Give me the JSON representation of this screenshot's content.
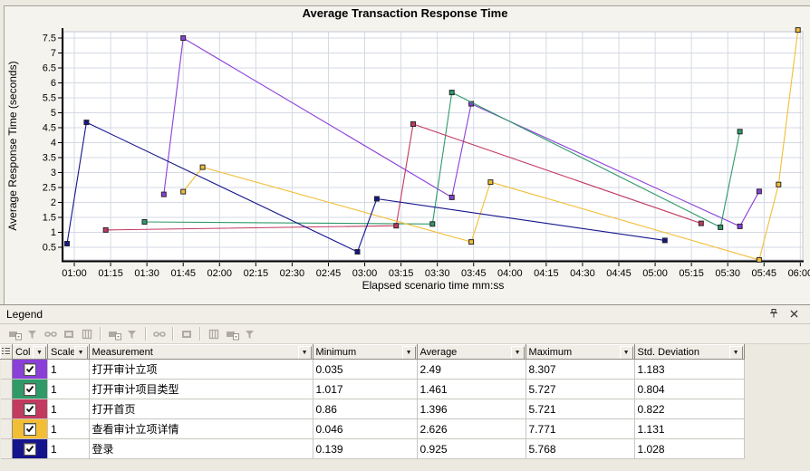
{
  "chart_data": {
    "type": "line",
    "title": "Average Transaction Response Time",
    "xlabel": "Elapsed scenario time mm:ss",
    "ylabel": "Average Response Time (seconds)",
    "grid": true,
    "legend_position": "bottom-table",
    "x_tick_labels": [
      "01:00",
      "01:15",
      "01:30",
      "01:45",
      "02:00",
      "02:15",
      "02:30",
      "02:45",
      "03:00",
      "03:15",
      "03:30",
      "03:45",
      "04:00",
      "04:15",
      "04:30",
      "04:45",
      "05:00",
      "05:15",
      "05:30",
      "05:45",
      "06:00"
    ],
    "x_ticks_seconds": [
      60,
      75,
      90,
      105,
      120,
      135,
      150,
      165,
      180,
      195,
      210,
      225,
      240,
      255,
      270,
      285,
      300,
      315,
      330,
      345,
      360
    ],
    "x_range_seconds": [
      55.5,
      361
    ],
    "y_ticks": [
      0.5,
      1,
      1.5,
      2,
      2.5,
      3,
      3.5,
      4,
      4.5,
      5,
      5.5,
      6,
      6.5,
      7,
      7.5
    ],
    "y_range": [
      0.076,
      7.712
    ],
    "series": [
      {
        "name": "打开审计立项",
        "color": "#8B3FD9",
        "points": [
          [
            97,
            2.27
          ],
          [
            105,
            7.5
          ],
          [
            216,
            2.17
          ],
          [
            224,
            5.3
          ],
          [
            335,
            1.2
          ],
          [
            343,
            2.37
          ]
        ]
      },
      {
        "name": "打开审计项目类型",
        "color": "#2F9A68",
        "points": [
          [
            89,
            1.35
          ],
          [
            208,
            1.28
          ],
          [
            216,
            5.68
          ],
          [
            327,
            1.17
          ],
          [
            335,
            4.37
          ]
        ]
      },
      {
        "name": "打开首页",
        "color": "#C23A60",
        "points": [
          [
            73,
            1.08
          ],
          [
            193,
            1.22
          ],
          [
            200,
            4.62
          ],
          [
            319,
            1.3
          ]
        ]
      },
      {
        "name": "查看审计立项详情",
        "color": "#F2BE35",
        "points": [
          [
            105,
            2.36
          ],
          [
            113,
            3.18
          ],
          [
            224,
            0.68
          ],
          [
            232,
            2.68
          ],
          [
            343,
            0.08
          ],
          [
            351,
            2.6
          ],
          [
            359,
            7.77
          ]
        ]
      },
      {
        "name": "登录",
        "color": "#14148C",
        "points": [
          [
            57,
            0.62
          ],
          [
            65,
            4.68
          ],
          [
            177,
            0.35
          ],
          [
            185,
            2.12
          ],
          [
            304,
            0.73
          ]
        ]
      }
    ]
  },
  "legend": {
    "title": "Legend",
    "columns": [
      "Col",
      "Scale",
      "Measurement",
      "Minimum",
      "Average",
      "Maximum",
      "Std. Deviation"
    ],
    "rows": [
      {
        "color": "#8B3FD9",
        "checked": true,
        "scale": "1",
        "measurement": "打开审计立项",
        "minimum": "0.035",
        "average": "2.49",
        "maximum": "8.307",
        "std_deviation": "1.183"
      },
      {
        "color": "#2F9A68",
        "checked": true,
        "scale": "1",
        "measurement": "打开审计项目类型",
        "minimum": "1.017",
        "average": "1.461",
        "maximum": "5.727",
        "std_deviation": "0.804"
      },
      {
        "color": "#C23A60",
        "checked": true,
        "scale": "1",
        "measurement": "打开首页",
        "minimum": "0.86",
        "average": "1.396",
        "maximum": "5.721",
        "std_deviation": "0.822"
      },
      {
        "color": "#F2BE35",
        "checked": true,
        "scale": "1",
        "measurement": "查看审计立项详情",
        "minimum": "0.046",
        "average": "2.626",
        "maximum": "7.771",
        "std_deviation": "1.131"
      },
      {
        "color": "#14148C",
        "checked": true,
        "scale": "1",
        "measurement": "登录",
        "minimum": "0.139",
        "average": "0.925",
        "maximum": "5.768",
        "std_deviation": "1.028"
      }
    ]
  }
}
